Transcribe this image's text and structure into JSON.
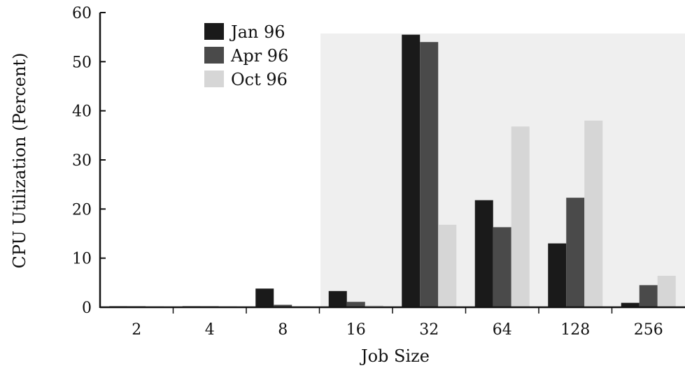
{
  "chart_data": {
    "type": "bar",
    "title": "",
    "xlabel": "Job Size",
    "ylabel": "CPU Utilization (Percent)",
    "ylim": [
      0,
      60
    ],
    "yticks": [
      "0",
      "10",
      "20",
      "30",
      "40",
      "50",
      "60"
    ],
    "categories": [
      "2",
      "4",
      "8",
      "16",
      "32",
      "64",
      "128",
      "256"
    ],
    "series": [
      {
        "name": "Jan 96",
        "color": "#1a1a1a",
        "values": [
          0.1,
          0.1,
          3.8,
          3.3,
          55.5,
          21.8,
          13,
          0.9
        ]
      },
      {
        "name": "Apr 96",
        "color": "#4a4a4a",
        "values": [
          0.1,
          0.1,
          0.5,
          1.1,
          54,
          16.3,
          22.3,
          4.5
        ]
      },
      {
        "name": "Oct 96",
        "color": "#d6d6d6",
        "values": [
          0.1,
          0.1,
          0.1,
          0.4,
          16.8,
          36.8,
          38,
          6.4
        ]
      }
    ],
    "legend_position": "top-left",
    "grid": false
  }
}
